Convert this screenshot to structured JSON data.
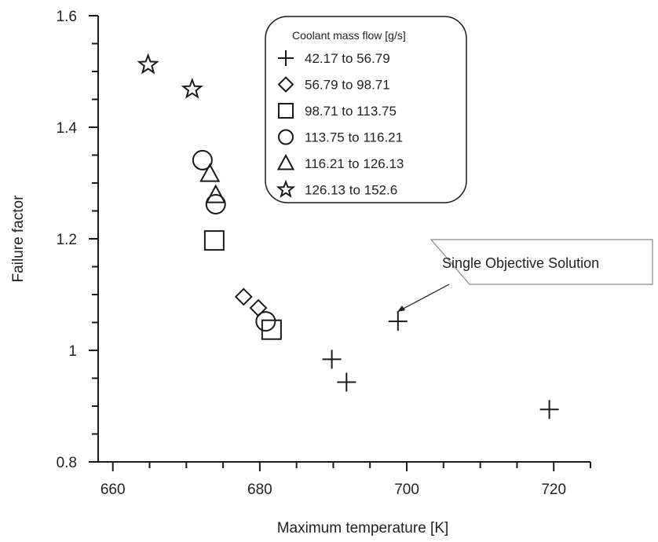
{
  "chart_data": {
    "type": "scatter",
    "xlabel": "Maximum temperature [K]",
    "ylabel": "Failure factor",
    "xlim": [
      658,
      725
    ],
    "ylim": [
      0.8,
      1.6
    ],
    "x_ticks": [
      660,
      680,
      700,
      720
    ],
    "y_ticks": [
      0.8,
      1,
      1.2,
      1.4,
      1.6
    ],
    "x_tick_labels": [
      "660",
      "680",
      "700",
      "720"
    ],
    "y_tick_labels": [
      "0.8",
      "1",
      "1.2",
      "1.4",
      "1.6"
    ],
    "grid": false,
    "legend_placement": "top-right",
    "legend_title": "Coolant mass flow [g/s]",
    "series": [
      {
        "name": "42.17 to 56.79",
        "marker": "plus",
        "points": [
          [
            689.8,
            0.984
          ],
          [
            691.8,
            0.943
          ],
          [
            698.8,
            1.052
          ],
          [
            719.4,
            0.894
          ]
        ]
      },
      {
        "name": "56.79 to 98.71",
        "marker": "diamond",
        "points": [
          [
            677.8,
            1.096
          ],
          [
            679.8,
            1.076
          ]
        ]
      },
      {
        "name": "98.71 to 113.75",
        "marker": "square",
        "points": [
          [
            673.8,
            1.197
          ],
          [
            681.6,
            1.037
          ]
        ]
      },
      {
        "name": "113.75 to 116.21",
        "marker": "circle",
        "points": [
          [
            672.2,
            1.341
          ],
          [
            674.0,
            1.262
          ],
          [
            680.8,
            1.052
          ]
        ]
      },
      {
        "name": "116.21 to 126.13",
        "marker": "triangle",
        "points": [
          [
            673.2,
            1.316
          ],
          [
            674.0,
            1.278
          ]
        ]
      },
      {
        "name": "126.13 to 152.6",
        "marker": "star",
        "points": [
          [
            664.8,
            1.512
          ],
          [
            670.8,
            1.468
          ]
        ]
      }
    ],
    "annotation": {
      "text": "Single Objective Solution",
      "points_to": [
        699.8,
        1.07
      ]
    }
  }
}
